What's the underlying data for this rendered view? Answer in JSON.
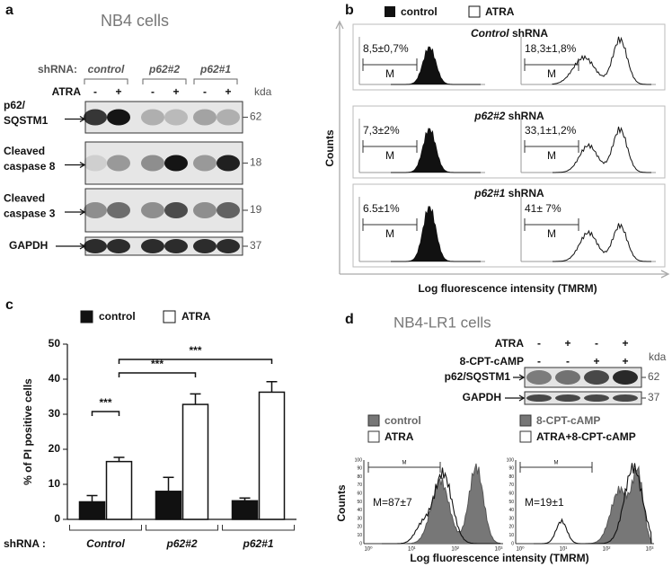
{
  "panel_a": {
    "letter": "a",
    "title": "NB4 cells",
    "shrna_label": "shRNA:",
    "groups": [
      "control",
      "p62#2",
      "p62#1"
    ],
    "atra_label": "ATRA",
    "signs": [
      "-",
      "+",
      "-",
      "+",
      "-",
      "+"
    ],
    "kda_label": "kda",
    "blots": [
      {
        "label": [
          "p62/",
          "SQSTM1"
        ],
        "kda": "62"
      },
      {
        "label": [
          "Cleaved",
          "caspase 8"
        ],
        "kda": "18"
      },
      {
        "label": [
          "Cleaved",
          "caspase 3"
        ],
        "kda": "19"
      },
      {
        "label": [
          "GAPDH"
        ],
        "kda": "37"
      }
    ]
  },
  "panel_b": {
    "letter": "b",
    "legend": [
      "control",
      "ATRA"
    ],
    "rows": [
      {
        "gene": "Control",
        "suffix": "shRNA",
        "left": "8,5±0,7%",
        "right": "18,3±1,8%"
      },
      {
        "gene": "p62#2",
        "suffix": "shRNA",
        "left": "7,3±2%",
        "right": "33,1±1,2%"
      },
      {
        "gene": "p62#1",
        "suffix": "shRNA",
        "left": "6.5±1%",
        "right": "41± 7%"
      }
    ],
    "gate_label": "M",
    "y_label": "Counts",
    "x_label": "Log fluorescence intensity (TMRM)"
  },
  "chart_data": {
    "type": "bar",
    "panel_label": "c",
    "y_label": "% of PI positive cells",
    "x_prefix": "shRNA :",
    "categories": [
      "Control",
      "p62#2",
      "p62#1"
    ],
    "series": [
      {
        "name": "control",
        "color": "#111111",
        "values": [
          5,
          8,
          5.3
        ],
        "errors": [
          1.8,
          4,
          0.8
        ]
      },
      {
        "name": "ATRA",
        "color": "#ffffff",
        "values": [
          16.5,
          32.8,
          36.3
        ],
        "errors": [
          1.2,
          3,
          3
        ]
      }
    ],
    "ylim": [
      0,
      50
    ],
    "yticks": [
      0,
      10,
      20,
      30,
      40,
      50
    ],
    "annotations": [
      "***",
      "***",
      "***"
    ]
  },
  "panel_d": {
    "letter": "d",
    "title": "NB4-LR1 cells",
    "treatments": [
      {
        "label": "ATRA",
        "signs": [
          "-",
          "+",
          "-",
          "+"
        ]
      },
      {
        "label": "8-CPT-cAMP",
        "signs": [
          "-",
          "-",
          "+",
          "+"
        ]
      }
    ],
    "kda_label": "kda",
    "blots": [
      {
        "label": "p62/SQSTM1",
        "kda": "62"
      },
      {
        "label": "GAPDH",
        "kda": "37"
      }
    ],
    "histograms": [
      {
        "legend": [
          "control",
          "ATRA"
        ],
        "annotation": "M=87±7"
      },
      {
        "legend": [
          "8-CPT-cAMP",
          "ATRA+8-CPT-cAMP"
        ],
        "annotation": "M=19±1"
      }
    ],
    "gate_label": "M",
    "hist_yticks": [
      "0",
      "10",
      "20",
      "30",
      "40",
      "50",
      "60",
      "70",
      "80",
      "90",
      "100"
    ],
    "hist_xticks": [
      "10⁰",
      "10¹",
      "10²",
      "10³"
    ],
    "y_label": "Counts",
    "x_label": "Log fluorescence intensity (TMRM)"
  }
}
